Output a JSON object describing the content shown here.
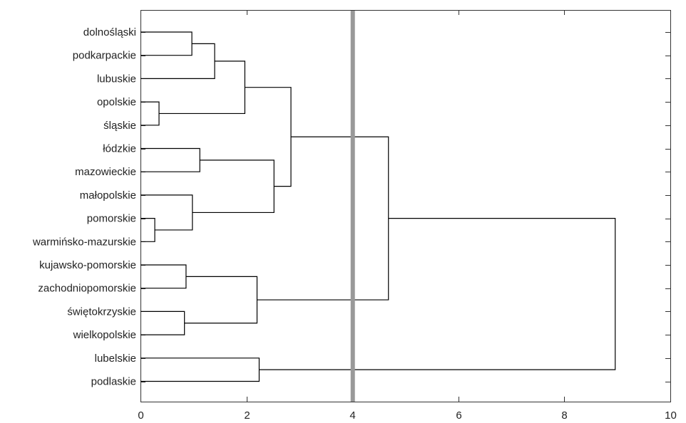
{
  "chart_data": {
    "type": "dendrogram",
    "orientation": "horizontal",
    "xlim": [
      0,
      10
    ],
    "xticks": [
      {
        "value": 0,
        "label": "0"
      },
      {
        "value": 2,
        "label": "2"
      },
      {
        "value": 4,
        "label": "4"
      },
      {
        "value": 6,
        "label": "6"
      },
      {
        "value": 8,
        "label": "8"
      },
      {
        "value": 10,
        "label": "10"
      }
    ],
    "leaves": [
      "dolnośląski",
      "podkarpackie",
      "lubuskie",
      "opolskie",
      "śląskie",
      "łódzkie",
      "mazowieckie",
      "małopolskie",
      "pomorskie",
      "warmińsko-mazurskie",
      "kujawsko-pomorskie",
      "zachodniopomorskie",
      "świętokrzyskie",
      "wielkopolskie",
      "lubelskie",
      "podlaskie"
    ],
    "merges": [
      {
        "id": "n1",
        "left": "L0",
        "right": "L1",
        "height": 0.97
      },
      {
        "id": "n2",
        "left": "n1",
        "right": "L2",
        "height": 1.4
      },
      {
        "id": "n3",
        "left": "L3",
        "right": "L4",
        "height": 0.35
      },
      {
        "id": "n4",
        "left": "n2",
        "right": "n3",
        "height": 1.97
      },
      {
        "id": "n5",
        "left": "L5",
        "right": "L6",
        "height": 1.12
      },
      {
        "id": "n6",
        "left": "L8",
        "right": "L9",
        "height": 0.27
      },
      {
        "id": "n7",
        "left": "L7",
        "right": "n6",
        "height": 0.98
      },
      {
        "id": "n8",
        "left": "n5",
        "right": "n7",
        "height": 2.52
      },
      {
        "id": "n9",
        "left": "n4",
        "right": "n8",
        "height": 2.84
      },
      {
        "id": "n10",
        "left": "L10",
        "right": "L11",
        "height": 0.86
      },
      {
        "id": "n11",
        "left": "L12",
        "right": "L13",
        "height": 0.83
      },
      {
        "id": "n12",
        "left": "n10",
        "right": "n11",
        "height": 2.2
      },
      {
        "id": "n13",
        "left": "n9",
        "right": "n12",
        "height": 4.68
      },
      {
        "id": "n14",
        "left": "L14",
        "right": "L15",
        "height": 2.24
      },
      {
        "id": "n15",
        "left": "n13",
        "right": "n14",
        "height": 8.96
      }
    ],
    "cutoff": {
      "value": 4.0,
      "color": "#999999"
    },
    "grid": false,
    "line_color": "#000000"
  }
}
